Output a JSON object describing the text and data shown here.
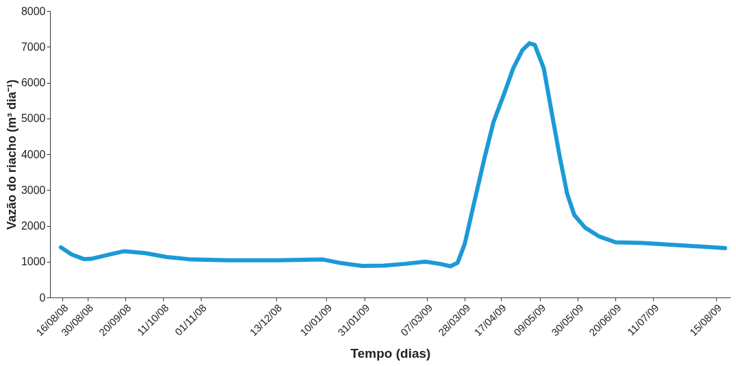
{
  "chart_data": {
    "type": "line",
    "xlabel": "Tempo (dias)",
    "ylabel": "Vazão do riacho (m³ dia⁻¹)",
    "xlim": [
      "2008-08-09",
      "2009-08-23"
    ],
    "ylim": [
      0,
      8000
    ],
    "yticks": [
      0,
      1000,
      2000,
      3000,
      4000,
      5000,
      6000,
      7000,
      8000
    ],
    "xticks": [
      {
        "value": "2008-08-16",
        "label": "16/08/08"
      },
      {
        "value": "2008-08-30",
        "label": "30/08/08"
      },
      {
        "value": "2008-09-20",
        "label": "20/09/08"
      },
      {
        "value": "2008-10-11",
        "label": "11/10/08"
      },
      {
        "value": "2008-11-01",
        "label": "01/11/08"
      },
      {
        "value": "2008-12-13",
        "label": "13/12/08"
      },
      {
        "value": "2009-01-10",
        "label": "10/01/09"
      },
      {
        "value": "2009-01-31",
        "label": "31/01/09"
      },
      {
        "value": "2009-03-07",
        "label": "07/03/09"
      },
      {
        "value": "2009-03-28",
        "label": "28/03/09"
      },
      {
        "value": "2009-04-17",
        "label": "17/04/09"
      },
      {
        "value": "2009-05-09",
        "label": "09/05/09"
      },
      {
        "value": "2009-05-30",
        "label": "30/05/09"
      },
      {
        "value": "2009-06-20",
        "label": "20/06/09"
      },
      {
        "value": "2009-07-11",
        "label": "11/07/09"
      },
      {
        "value": "2009-08-15",
        "label": "15/08/09"
      }
    ],
    "grid": false,
    "marker": "none",
    "line_style": "solid",
    "x": [
      "2008-08-15",
      "2008-08-21",
      "2008-08-28",
      "2008-09-01",
      "2008-09-11",
      "2008-09-19",
      "2008-10-01",
      "2008-10-13",
      "2008-10-27",
      "2008-11-16",
      "2008-12-14",
      "2009-01-08",
      "2009-01-18",
      "2009-01-30",
      "2009-02-11",
      "2009-02-23",
      "2009-03-06",
      "2009-03-14",
      "2009-03-20",
      "2009-03-24",
      "2009-03-28",
      "2009-04-02",
      "2009-04-08",
      "2009-04-13",
      "2009-04-19",
      "2009-04-24",
      "2009-04-29",
      "2009-05-03",
      "2009-05-06",
      "2009-05-11",
      "2009-05-16",
      "2009-05-20",
      "2009-05-24",
      "2009-05-28",
      "2009-06-03",
      "2009-06-11",
      "2009-06-20",
      "2009-07-05",
      "2009-07-25",
      "2009-08-20"
    ],
    "series": [
      {
        "color": "#1b9ad6",
        "values": [
          1400,
          1200,
          1070,
          1080,
          1200,
          1290,
          1240,
          1130,
          1060,
          1040,
          1040,
          1060,
          960,
          880,
          890,
          940,
          1000,
          940,
          870,
          970,
          1500,
          2600,
          3900,
          4900,
          5700,
          6400,
          6900,
          7100,
          7050,
          6400,
          5000,
          3900,
          2900,
          2300,
          1950,
          1700,
          1540,
          1520,
          1460,
          1380
        ]
      }
    ]
  }
}
